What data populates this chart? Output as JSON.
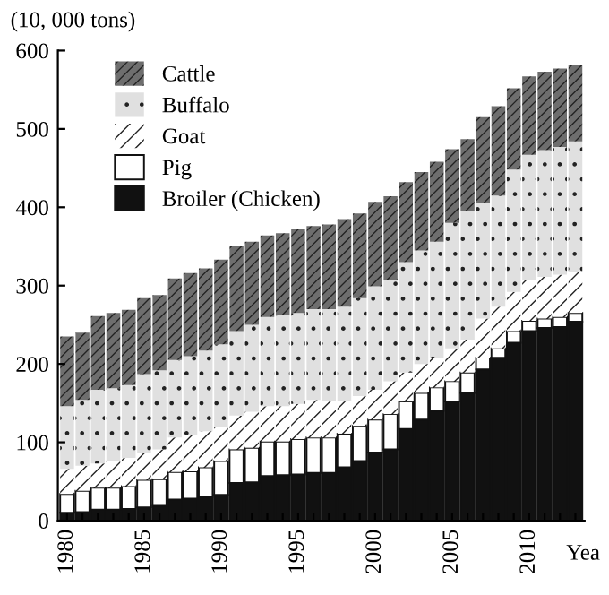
{
  "chart_data": {
    "type": "bar",
    "stacked": true,
    "ylabel": "(10, 000 tons)",
    "xlabel": "Yea",
    "categories": [
      "1980",
      null,
      null,
      null,
      null,
      "1985",
      null,
      null,
      null,
      null,
      "1990",
      null,
      null,
      null,
      null,
      "1995",
      null,
      null,
      null,
      null,
      "2000",
      null,
      null,
      null,
      null,
      "2005",
      null,
      null,
      null,
      null,
      "2010",
      null,
      null,
      null
    ],
    "series": [
      {
        "name": "Broiler (Chicken)",
        "color": "#111111",
        "values": [
          10,
          11,
          14,
          14,
          15,
          17,
          19,
          27,
          28,
          30,
          33,
          48,
          49,
          57,
          58,
          59,
          61,
          61,
          68,
          76,
          87,
          91,
          117,
          129,
          140,
          152,
          163,
          193,
          208,
          227,
          242,
          246,
          247,
          254
        ]
      },
      {
        "name": "Pig",
        "color": "#ffffff",
        "values": [
          24,
          27,
          28,
          28,
          29,
          35,
          34,
          35,
          35,
          38,
          43,
          43,
          44,
          44,
          43,
          45,
          45,
          45,
          43,
          45,
          42,
          45,
          35,
          34,
          30,
          26,
          26,
          15,
          12,
          15,
          13,
          12,
          13,
          11
        ]
      },
      {
        "name": "Goat",
        "color": "#ffffff",
        "values": [
          32,
          32,
          31,
          34,
          36,
          35,
          38,
          44,
          46,
          46,
          43,
          43,
          46,
          45,
          45,
          45,
          48,
          46,
          41,
          38,
          38,
          42,
          37,
          37,
          38,
          42,
          42,
          50,
          53,
          50,
          52,
          53,
          54,
          53
        ]
      },
      {
        "name": "Buffalo",
        "color": "#e0e0e0",
        "values": [
          80,
          84,
          94,
          93,
          93,
          100,
          101,
          99,
          101,
          103,
          106,
          108,
          111,
          114,
          117,
          116,
          116,
          118,
          121,
          125,
          132,
          129,
          141,
          145,
          148,
          160,
          164,
          147,
          142,
          156,
          160,
          162,
          163,
          166
        ]
      },
      {
        "name": "Cattle",
        "color": "#6e6e6e",
        "values": [
          89,
          86,
          94,
          96,
          96,
          97,
          96,
          104,
          106,
          105,
          108,
          108,
          106,
          104,
          104,
          108,
          106,
          108,
          112,
          108,
          108,
          107,
          102,
          100,
          102,
          94,
          92,
          110,
          114,
          104,
          100,
          100,
          100,
          98
        ]
      }
    ],
    "ylim": [
      0,
      600
    ],
    "yticks": [
      0,
      100,
      200,
      300,
      400,
      500,
      600
    ],
    "grid": false,
    "legend": "top left"
  }
}
